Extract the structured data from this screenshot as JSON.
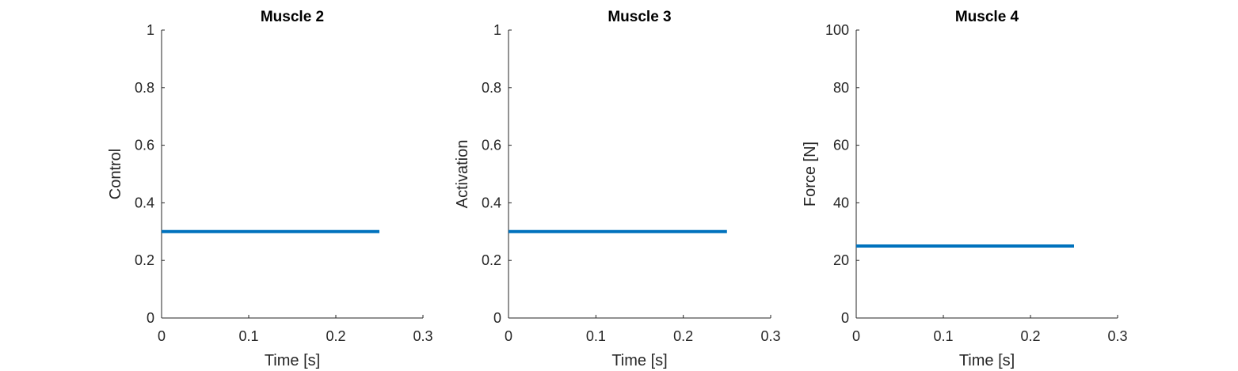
{
  "chart_data": [
    {
      "type": "line",
      "title": "Muscle 2",
      "xlabel": "Time [s]",
      "ylabel": "Control",
      "xlim": [
        0,
        0.3
      ],
      "ylim": [
        0,
        1
      ],
      "xticks": [
        "0",
        "0.1",
        "0.2",
        "0.3"
      ],
      "yticks": [
        "0",
        "0.2",
        "0.4",
        "0.6",
        "0.8",
        "1"
      ],
      "series": [
        {
          "x": [
            0,
            0.25
          ],
          "y": [
            0.3,
            0.3
          ]
        }
      ]
    },
    {
      "type": "line",
      "title": "Muscle 3",
      "xlabel": "Time [s]",
      "ylabel": "Activation",
      "xlim": [
        0,
        0.3
      ],
      "ylim": [
        0,
        1
      ],
      "xticks": [
        "0",
        "0.1",
        "0.2",
        "0.3"
      ],
      "yticks": [
        "0",
        "0.2",
        "0.4",
        "0.6",
        "0.8",
        "1"
      ],
      "series": [
        {
          "x": [
            0,
            0.25
          ],
          "y": [
            0.3,
            0.3
          ]
        }
      ]
    },
    {
      "type": "line",
      "title": "Muscle 4",
      "xlabel": "Time [s]",
      "ylabel": "Force [N]",
      "xlim": [
        0,
        0.3
      ],
      "ylim": [
        0,
        100
      ],
      "xticks": [
        "0",
        "0.1",
        "0.2",
        "0.3"
      ],
      "yticks": [
        "0",
        "20",
        "40",
        "60",
        "80",
        "100"
      ],
      "series": [
        {
          "x": [
            0,
            0.25
          ],
          "y": [
            25,
            25
          ]
        }
      ]
    }
  ],
  "colors": {
    "series": "#0072BD",
    "axes": "#262626"
  }
}
